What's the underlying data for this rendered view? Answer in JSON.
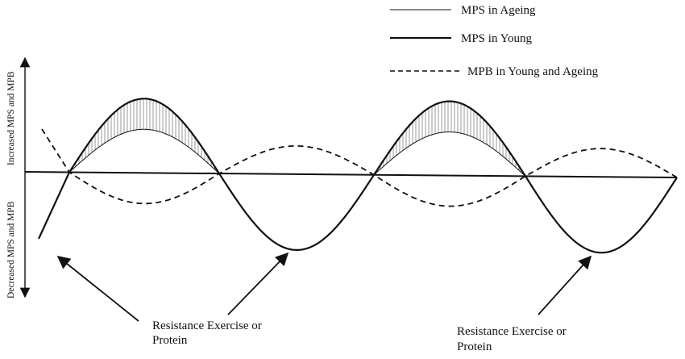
{
  "legend": {
    "items": [
      {
        "label": "MPS in Ageing",
        "style": "thin-solid"
      },
      {
        "label": "MPS in Young",
        "style": "thick-solid"
      },
      {
        "label": "MPB in Young and Ageing",
        "style": "dashed"
      }
    ]
  },
  "axis": {
    "upper_label": "Increased MPS and MPB",
    "lower_label": "Decreased MPS and MPB"
  },
  "annotations": [
    {
      "line1": "Resistance Exercise or",
      "line2": "Protein"
    },
    {
      "line1": "Resistance Exercise or",
      "line2": "Protein"
    }
  ],
  "colors": {
    "ink": "#111111",
    "hatch": "#555555"
  }
}
